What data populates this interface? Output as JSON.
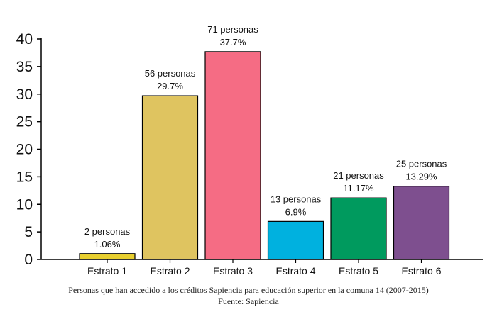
{
  "chart_data": {
    "type": "bar",
    "categories": [
      "Estrato 1",
      "Estrato 2",
      "Estrato 3",
      "Estrato 4",
      "Estrato 5",
      "Estrato 6"
    ],
    "values": [
      1.06,
      29.7,
      37.7,
      6.9,
      11.17,
      13.29
    ],
    "data_labels": [
      [
        "2 personas",
        "1.06%"
      ],
      [
        "56 personas",
        "29.7%"
      ],
      [
        "71 personas",
        "37.7%"
      ],
      [
        "13 personas",
        "6.9%"
      ],
      [
        "21 personas",
        "11.17%"
      ],
      [
        "25 personas",
        "13.29%"
      ]
    ],
    "colors": [
      "#e8cf2f",
      "#dfc460",
      "#f56c84",
      "#00b1df",
      "#009a5e",
      "#7e4f8f"
    ],
    "yticks": [
      0,
      5,
      10,
      15,
      20,
      25,
      30,
      35,
      40
    ],
    "ylim": [
      0,
      40
    ],
    "grid": false,
    "title": "",
    "xlabel": "",
    "ylabel": ""
  },
  "caption": {
    "line1": "Personas que han accedido a los créditos Sapiencia para educación superior en la comuna 14 (2007-2015)",
    "line2": "Fuente: Sapiencia"
  }
}
